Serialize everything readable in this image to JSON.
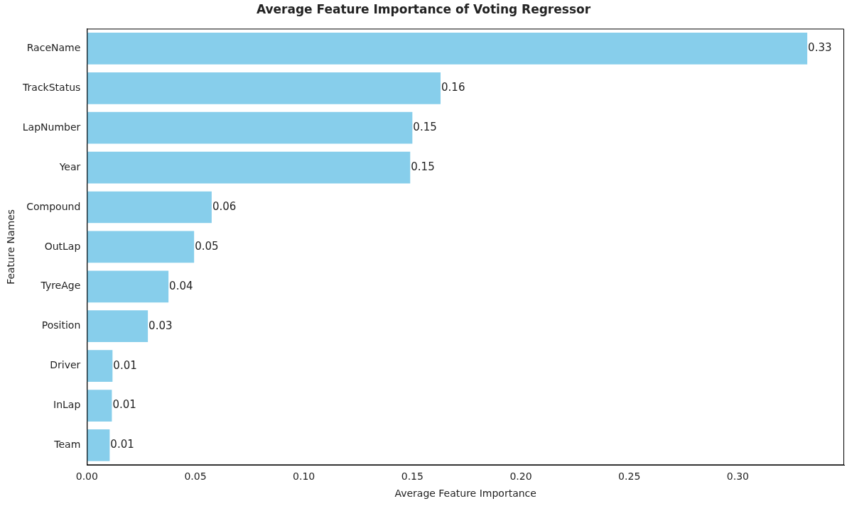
{
  "chart_data": {
    "type": "bar",
    "orientation": "horizontal",
    "title": "Average Feature Importance of Voting Regressor",
    "xlabel": "Average Feature Importance",
    "ylabel": "Feature Names",
    "categories": [
      "RaceName",
      "TrackStatus",
      "LapNumber",
      "Year",
      "Compound",
      "OutLap",
      "TyreAge",
      "Position",
      "Driver",
      "InLap",
      "Team"
    ],
    "values": [
      0.332,
      0.163,
      0.15,
      0.149,
      0.0575,
      0.0494,
      0.0376,
      0.0281,
      0.0118,
      0.0115,
      0.0105
    ],
    "value_labels": [
      "0.33",
      "0.16",
      "0.15",
      "0.15",
      "0.06",
      "0.05",
      "0.04",
      "0.03",
      "0.01",
      "0.01",
      "0.01"
    ],
    "color": "#87ceeb",
    "xlim": [
      0,
      0.349
    ],
    "xticks": [
      {
        "value": 0,
        "label": "0.00"
      },
      {
        "value": 0.05,
        "label": "0.05"
      },
      {
        "value": 0.1,
        "label": "0.10"
      },
      {
        "value": 0.15,
        "label": "0.15"
      },
      {
        "value": 0.2,
        "label": "0.20"
      },
      {
        "value": 0.25,
        "label": "0.25"
      },
      {
        "value": 0.3,
        "label": "0.30"
      }
    ],
    "grid": false,
    "legend": false
  }
}
